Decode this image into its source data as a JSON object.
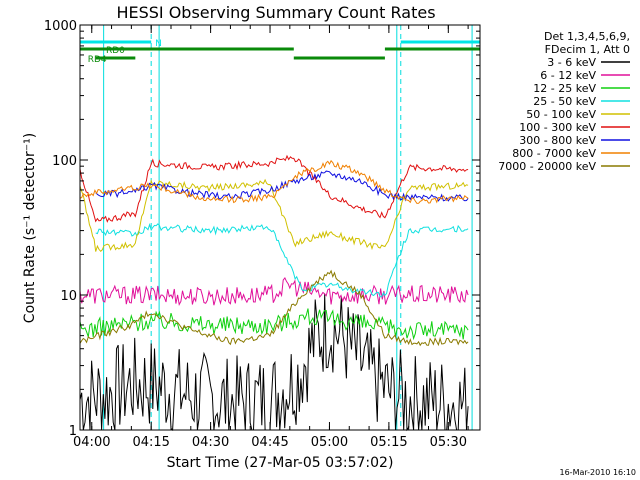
{
  "chart_data": {
    "type": "line",
    "title": "HESSI Observing Summary Count Rates",
    "xlabel": "Start Time (27-Mar-05 03:57:02)",
    "ylabel": "Count Rate (s⁻¹ detector⁻¹)",
    "x_start": "03:57:02",
    "xlim": [
      "03:57:02",
      "05:38:00"
    ],
    "ylim": [
      1,
      1000
    ],
    "yscale": "log",
    "grid": false,
    "legend_position": "right",
    "legend_header": [
      "Det 1,3,4,5,6,9,",
      "FDecim 1, Att 0"
    ],
    "x_tick_labels": [
      "04:00",
      "04:15",
      "04:30",
      "04:45",
      "05:00",
      "05:15",
      "05:30"
    ],
    "y_tick_labels": [
      "1",
      "10",
      "100",
      "1000"
    ],
    "flags": [
      {
        "label": "N",
        "color": "#00e5e5",
        "segments": [
          [
            "03:57:02",
            "04:15"
          ],
          [
            "05:18",
            "05:38"
          ]
        ]
      },
      {
        "label": "RD0",
        "color": "#0a8a0a",
        "segments": [
          [
            "03:57:02",
            "04:51"
          ],
          [
            "05:14",
            "05:38"
          ]
        ]
      },
      {
        "label": "RD4",
        "color": "#0a8a0a",
        "segments": [
          [
            "04:01",
            "04:11"
          ],
          [
            "04:51",
            "05:14"
          ]
        ]
      }
    ],
    "night_boundaries": [
      "04:03",
      "04:17",
      "05:17",
      "05:36"
    ],
    "saa_boundaries": [
      "04:15",
      "05:18"
    ],
    "series": [
      {
        "name": "3 - 6 keV",
        "color": "#000000",
        "x": [
          "03:57:02",
          "04:05",
          "04:10",
          "04:15",
          "04:25",
          "04:35",
          "04:45",
          "04:52",
          "04:56",
          "05:00",
          "05:03",
          "05:06",
          "05:10",
          "05:15",
          "05:20",
          "05:30",
          "05:35"
        ],
        "y": [
          1.7,
          1.9,
          2.2,
          2.2,
          1.8,
          1.6,
          1.7,
          2.5,
          4.5,
          6.0,
          5.0,
          3.8,
          2.6,
          1.9,
          1.7,
          1.6,
          1.5
        ]
      },
      {
        "name": "6 - 12 keV",
        "color": "#e0109a",
        "x": [
          "03:57:02",
          "04:15",
          "04:30",
          "04:45",
          "04:50",
          "04:53",
          "05:00",
          "05:10",
          "05:20",
          "05:35"
        ],
        "y": [
          10,
          10,
          9.8,
          10,
          12,
          11,
          10,
          10,
          10,
          10
        ]
      },
      {
        "name": "12 - 25 keV",
        "color": "#10d010",
        "x": [
          "03:57:02",
          "04:15",
          "04:30",
          "04:45",
          "04:55",
          "05:00",
          "05:05",
          "05:10",
          "05:20",
          "05:35"
        ],
        "y": [
          5.5,
          6.5,
          6.0,
          6.0,
          7.0,
          6.5,
          6.5,
          6.0,
          5.5,
          5.5
        ]
      },
      {
        "name": "25 - 50 keV",
        "color": "#10e0e0",
        "x": [
          "04:01",
          "04:11",
          "04:15",
          "04:30",
          "04:45",
          "04:53",
          "05:00",
          "05:05",
          "05:14",
          "05:20",
          "05:35"
        ],
        "y": [
          30,
          28,
          32,
          30,
          32,
          11,
          12,
          11,
          10,
          30,
          31
        ]
      },
      {
        "name": "50 - 100 keV",
        "color": "#d0c000",
        "x": [
          "03:57:02",
          "04:01",
          "04:11",
          "04:15",
          "04:30",
          "04:45",
          "04:51",
          "05:00",
          "05:05",
          "05:14",
          "05:20",
          "05:35"
        ],
        "y": [
          65,
          22,
          24,
          68,
          62,
          68,
          24,
          29,
          26,
          22,
          62,
          65
        ]
      },
      {
        "name": "100 - 300 keV",
        "color": "#e01010",
        "x": [
          "03:57:02",
          "04:01",
          "04:11",
          "04:15",
          "04:30",
          "04:45",
          "04:51",
          "05:00",
          "05:07",
          "05:14",
          "05:20",
          "05:35"
        ],
        "y": [
          85,
          35,
          40,
          95,
          88,
          95,
          105,
          55,
          45,
          38,
          88,
          85
        ]
      },
      {
        "name": "300 - 800 keV",
        "color": "#1010e0",
        "x": [
          "04:01",
          "04:11",
          "04:15",
          "04:25",
          "04:35",
          "04:45",
          "04:51",
          "05:00",
          "05:08",
          "05:14",
          "05:20",
          "05:35"
        ],
        "y": [
          55,
          58,
          65,
          57,
          53,
          60,
          70,
          80,
          70,
          55,
          53,
          52
        ]
      },
      {
        "name": "800 - 7000 keV",
        "color": "#f08000",
        "x": [
          "03:57:02",
          "04:15",
          "04:30",
          "04:45",
          "04:51",
          "05:00",
          "05:08",
          "05:14",
          "05:20",
          "05:35"
        ],
        "y": [
          55,
          65,
          50,
          53,
          75,
          95,
          80,
          60,
          50,
          52
        ]
      },
      {
        "name": "7000 - 20000 keV",
        "color": "#8a7a00",
        "x": [
          "03:57:02",
          "04:10",
          "04:15",
          "04:25",
          "04:35",
          "04:45",
          "04:53",
          "05:00",
          "05:08",
          "05:14",
          "05:20",
          "05:35"
        ],
        "y": [
          4.5,
          6.0,
          7.5,
          5.5,
          4.5,
          5.0,
          10,
          15,
          10,
          5.0,
          4.5,
          4.5
        ]
      }
    ],
    "footer_timestamp": "16-Mar-2010 16:10"
  }
}
